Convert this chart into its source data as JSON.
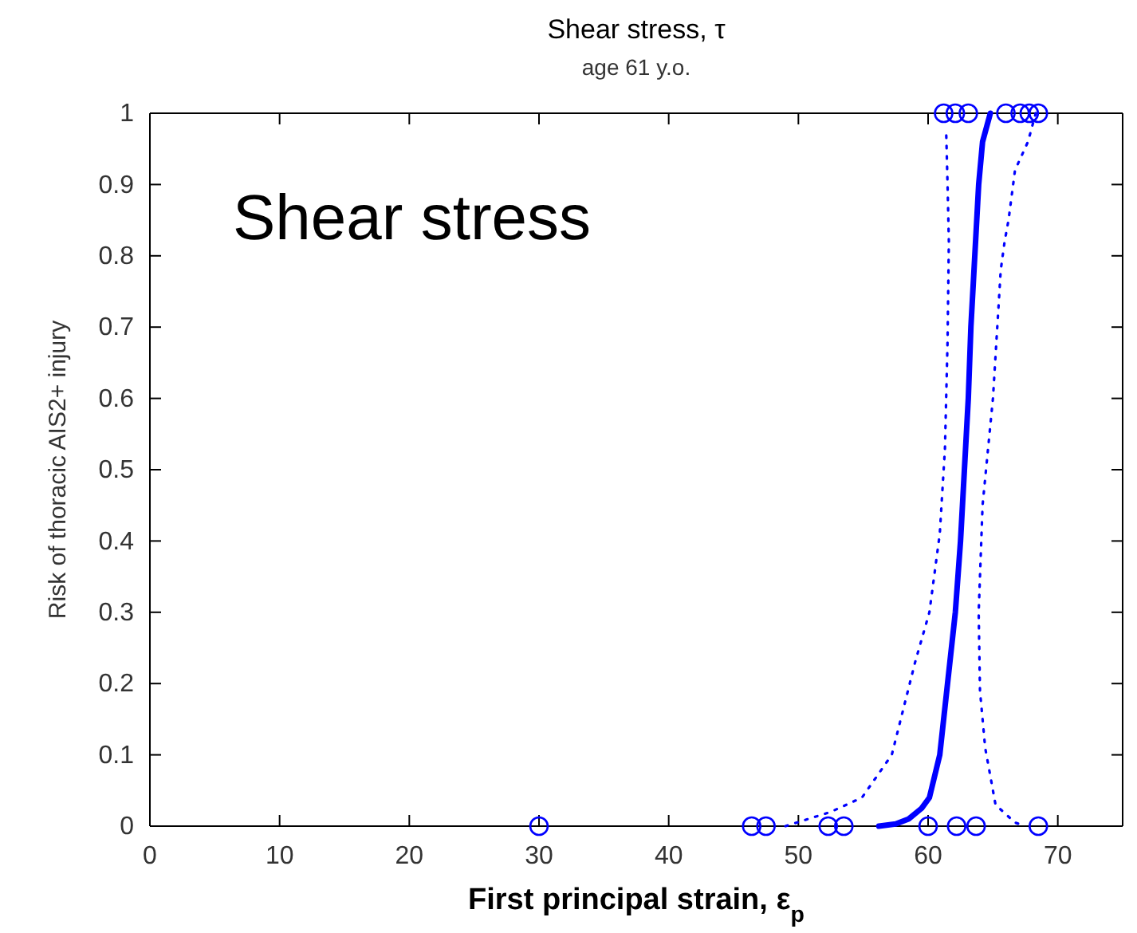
{
  "chart_data": {
    "type": "line",
    "title": "Shear stress, τ",
    "subtitle": "age 61 y.o.",
    "xlabel": "First principal strain, ε$_{p}$",
    "ylabel": "Risk of thoracic AIS2+ injury",
    "annotations": [
      "Shear stress"
    ],
    "xlim": [
      0,
      75
    ],
    "ylim": [
      0,
      1
    ],
    "xticks": [
      0,
      10,
      20,
      30,
      40,
      50,
      60,
      70
    ],
    "yticks": [
      0,
      0.1,
      0.2,
      0.3,
      0.4,
      0.5,
      0.6,
      0.7,
      0.8,
      0.9,
      1
    ],
    "grid": false,
    "series": [
      {
        "type": "scatter",
        "color": "#0000ff",
        "marker": "circle",
        "x": [
          30,
          46.4,
          47.5,
          52.3,
          53.5,
          60,
          62.2,
          63.7,
          68.5,
          61.2,
          62.1,
          63.1,
          66,
          67.1,
          67.8,
          68.5
        ],
        "values": [
          0,
          0,
          0,
          0,
          0,
          0,
          0,
          0,
          0,
          1,
          1,
          1,
          1,
          1,
          1,
          1
        ]
      },
      {
        "color": "#0000ff",
        "line_style": "solid",
        "x": [
          56.2,
          57.5,
          58.5,
          59.5,
          60.1,
          60.9,
          61.5,
          62.1,
          62.5,
          62.8,
          63.1,
          63.3,
          63.6,
          63.9,
          64.2,
          64.8
        ],
        "values": [
          0,
          0.003,
          0.01,
          0.025,
          0.04,
          0.1,
          0.2,
          0.3,
          0.4,
          0.5,
          0.6,
          0.7,
          0.8,
          0.9,
          0.96,
          1
        ]
      },
      {
        "color": "#0000ff",
        "line_style": "dotted",
        "x": [
          49,
          52.5,
          54.9,
          57.2,
          59,
          60.1,
          60.9,
          61.3,
          61.5,
          61.6,
          61.5,
          61.4
        ],
        "values": [
          0,
          0.02,
          0.04,
          0.1,
          0.23,
          0.3,
          0.41,
          0.53,
          0.68,
          0.82,
          0.9,
          0.97
        ]
      },
      {
        "color": "#0000ff",
        "line_style": "dotted",
        "x": [
          68.3,
          67.7,
          66.7,
          66.2,
          65.9,
          65.6,
          65,
          64.2,
          63.9,
          64,
          64.4,
          65.2,
          66.7,
          67.5
        ],
        "values": [
          1,
          0.96,
          0.92,
          0.85,
          0.82,
          0.78,
          0.6,
          0.45,
          0.3,
          0.19,
          0.11,
          0.03,
          0.005,
          0
        ]
      }
    ]
  }
}
